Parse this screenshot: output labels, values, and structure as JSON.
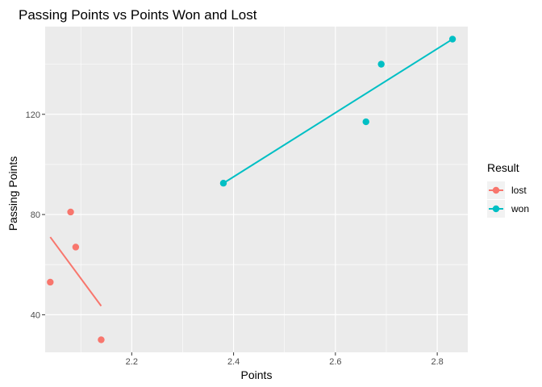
{
  "chart_data": {
    "type": "scatter",
    "title": "Passing Points vs Points Won and Lost",
    "xlabel": "Points",
    "ylabel": "Passing Points",
    "xlim": [
      2.03,
      2.86
    ],
    "ylim": [
      25,
      155
    ],
    "x_ticks": [
      2.2,
      2.4,
      2.6,
      2.8
    ],
    "x_tick_labels": [
      "2.2",
      "2.4",
      "2.6",
      "2.8"
    ],
    "y_ticks": [
      40,
      80,
      120
    ],
    "y_tick_labels": [
      "40",
      "80",
      "120"
    ],
    "grid": true,
    "legend": {
      "title": "Result",
      "placement": "right"
    },
    "series": [
      {
        "name": "lost",
        "color": "#F8766D",
        "points": [
          {
            "x": 2.04,
            "y": 53
          },
          {
            "x": 2.08,
            "y": 81
          },
          {
            "x": 2.09,
            "y": 67
          },
          {
            "x": 2.14,
            "y": 30
          }
        ],
        "fit": {
          "x": [
            2.04,
            2.14
          ],
          "y": [
            71,
            43.5
          ]
        }
      },
      {
        "name": "won",
        "color": "#00BFC4",
        "points": [
          {
            "x": 2.38,
            "y": 92.5
          },
          {
            "x": 2.66,
            "y": 117
          },
          {
            "x": 2.69,
            "y": 140
          },
          {
            "x": 2.83,
            "y": 150
          }
        ],
        "fit": {
          "x": [
            2.38,
            2.83
          ],
          "y": [
            92.5,
            150
          ]
        }
      }
    ]
  }
}
